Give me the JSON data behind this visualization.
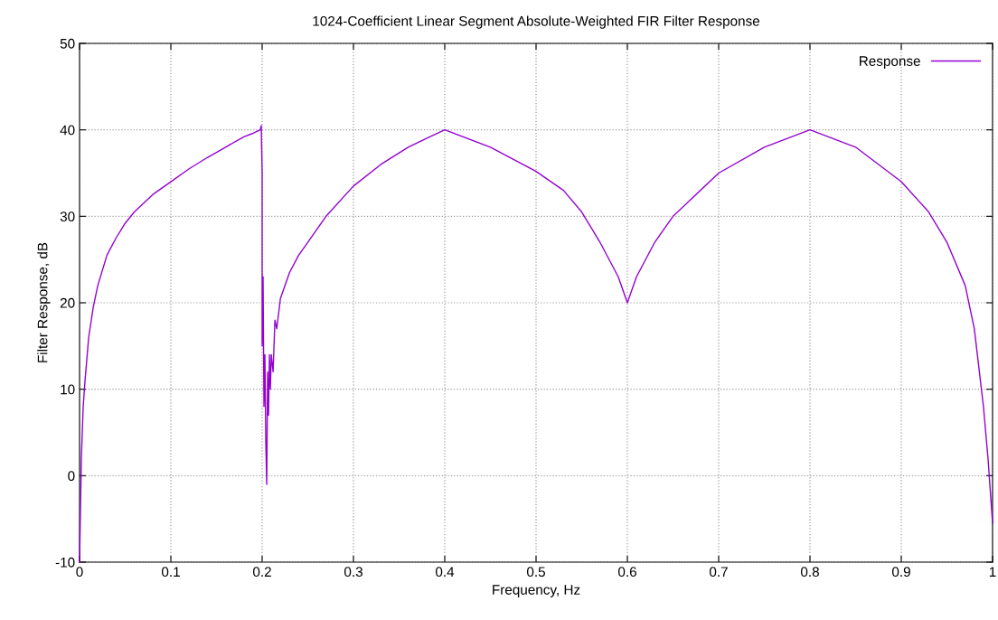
{
  "chart_data": {
    "type": "line",
    "title": "1024-Coefficient Linear Segment Absolute-Weighted FIR Filter Response",
    "xlabel": "Frequency, Hz",
    "ylabel": "Filter Response, dB",
    "series": [
      {
        "name": "Response",
        "color": "#9400d3",
        "x": [
          0,
          0.001,
          0.002,
          0.004,
          0.006,
          0.01,
          0.015,
          0.02,
          0.03,
          0.04,
          0.05,
          0.06,
          0.08,
          0.1,
          0.12,
          0.14,
          0.16,
          0.18,
          0.19,
          0.198,
          0.199,
          0.2,
          0.2,
          0.201,
          0.202,
          0.203,
          0.204,
          0.205,
          0.206,
          0.207,
          0.208,
          0.209,
          0.21,
          0.212,
          0.214,
          0.216,
          0.22,
          0.23,
          0.24,
          0.25,
          0.27,
          0.3,
          0.33,
          0.36,
          0.38,
          0.4,
          0.45,
          0.5,
          0.53,
          0.55,
          0.57,
          0.59,
          0.6,
          0.61,
          0.63,
          0.65,
          0.7,
          0.75,
          0.8,
          0.85,
          0.9,
          0.93,
          0.95,
          0.97,
          0.98,
          0.99,
          0.995,
          1.0
        ],
        "values": [
          -10,
          -4,
          2,
          8,
          11,
          16,
          19.5,
          22,
          25.5,
          27.5,
          29.2,
          30.5,
          32.5,
          34,
          35.5,
          36.8,
          38,
          39.2,
          39.6,
          40,
          40.5,
          35,
          15,
          23,
          8,
          14,
          4,
          -1,
          12,
          7,
          14,
          10,
          14,
          12,
          18,
          17,
          20.5,
          23.5,
          25.5,
          27,
          30,
          33.5,
          36,
          38,
          39,
          40,
          38,
          35.2,
          33,
          30.5,
          27,
          23,
          20,
          23,
          27,
          30,
          35,
          38,
          40,
          38,
          34,
          30.5,
          27,
          22,
          17,
          8,
          2,
          -5.5
        ]
      }
    ],
    "xlim": [
      0,
      1
    ],
    "xticks": [
      0,
      0.1,
      0.2,
      0.3,
      0.4,
      0.5,
      0.6,
      0.7,
      0.8,
      0.9,
      1
    ],
    "ylim": [
      -10,
      50
    ],
    "yticks": [
      -10,
      0,
      10,
      20,
      30,
      40,
      50
    ],
    "grid": true,
    "legend": "top right",
    "line_style": "solid",
    "marker": "none"
  }
}
